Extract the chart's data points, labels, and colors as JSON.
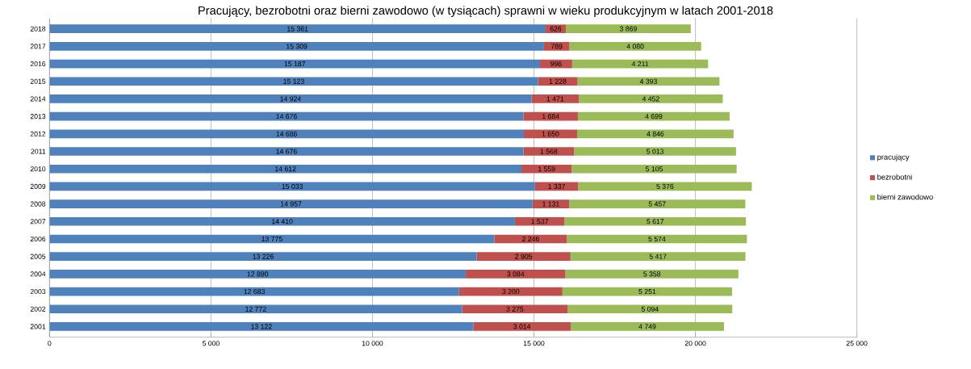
{
  "chart_data": {
    "type": "bar",
    "orientation": "horizontal",
    "stacked": true,
    "title": "Pracujący, bezrobotni oraz bierni zawodowo (w tysiącach) sprawni w wieku produkcyjnym w latach 2001-2018",
    "categories": [
      "2018",
      "2017",
      "2016",
      "2015",
      "2014",
      "2013",
      "2012",
      "2011",
      "2010",
      "2009",
      "2008",
      "2007",
      "2006",
      "2005",
      "2004",
      "2003",
      "2002",
      "2001"
    ],
    "series": [
      {
        "name": "pracujący",
        "color": "#4f81bd",
        "values": [
          15361,
          15309,
          15187,
          15123,
          14924,
          14676,
          14686,
          14676,
          14612,
          15033,
          14957,
          14410,
          13775,
          13226,
          12890,
          12683,
          12772,
          13122
        ],
        "value_labels": [
          "15 361",
          "15 309",
          "15 187",
          "15 123",
          "14 924",
          "14 676",
          "14 686",
          "14 676",
          "14 612",
          "15 033",
          "14 957",
          "14 410",
          "13 775",
          "13 226",
          "12 890",
          "12 683",
          "12 772",
          "13 122"
        ]
      },
      {
        "name": "bezrobotni",
        "color": "#c0504d",
        "values": [
          626,
          789,
          996,
          1228,
          1471,
          1684,
          1650,
          1568,
          1559,
          1337,
          1131,
          1537,
          2246,
          2905,
          3084,
          3200,
          3275,
          3014
        ],
        "value_labels": [
          "626",
          "789",
          "996",
          "1 228",
          "1 471",
          "1 684",
          "1 650",
          "1 568",
          "1 559",
          "1 337",
          "1 131",
          "1 537",
          "2 246",
          "2 905",
          "3 084",
          "3 200",
          "3 275",
          "3 014"
        ]
      },
      {
        "name": "bierni zawodowo",
        "color": "#9bbb59",
        "values": [
          3869,
          4080,
          4211,
          4393,
          4452,
          4699,
          4846,
          5013,
          5105,
          5376,
          5457,
          5617,
          5574,
          5417,
          5358,
          5251,
          5094,
          4749
        ],
        "value_labels": [
          "3 869",
          "4 080",
          "4 211",
          "4 393",
          "4 452",
          "4 699",
          "4 846",
          "5 013",
          "5 105",
          "5 376",
          "5 457",
          "5 617",
          "5 574",
          "5 417",
          "5 358",
          "5 251",
          "5 094",
          "4 749"
        ]
      }
    ],
    "xlim": [
      0,
      25000
    ],
    "xticks": [
      0,
      {
        "value": 5000,
        "label": "5 000"
      },
      {
        "value": 10000,
        "label": "10 000"
      },
      {
        "value": 15000,
        "label": "15 000"
      },
      {
        "value": 20000,
        "label": "20 000"
      },
      {
        "value": 25000,
        "label": "25 000"
      }
    ],
    "grid": "x",
    "legend": "right"
  }
}
